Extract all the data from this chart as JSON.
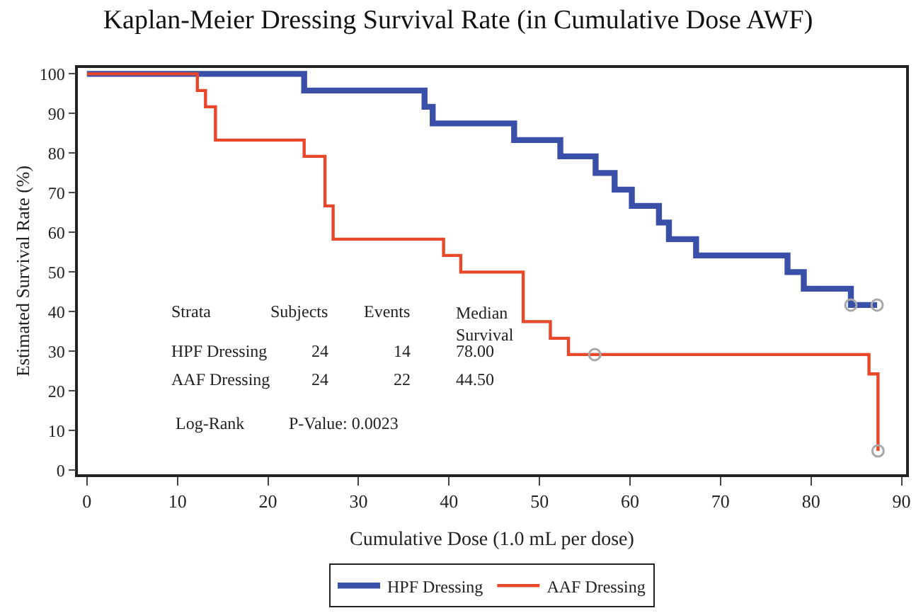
{
  "chart_data": {
    "type": "step",
    "title": "Kaplan-Meier Dressing Survival Rate (in Cumulative Dose AWF)",
    "xlabel": "Cumulative Dose (1.0 mL per dose)",
    "ylabel": "Estimated Survival Rate (%)",
    "xlim": [
      -1,
      90.5
    ],
    "ylim": [
      -1,
      101.5
    ],
    "xticks": [
      0,
      10,
      20,
      30,
      40,
      50,
      60,
      70,
      80,
      90
    ],
    "yticks": [
      0,
      10,
      20,
      30,
      40,
      50,
      60,
      70,
      80,
      90,
      100
    ],
    "legend": "bottom",
    "line_style": "solid",
    "marker": "none",
    "series": [
      {
        "name": "HPF Dressing",
        "color": "#3a4fa8",
        "x": [
          0,
          24,
          37.3,
          38.2,
          47.2,
          52.3,
          56.2,
          58.3,
          60.2,
          63.2,
          64.3,
          67.3,
          77.4,
          79.2,
          84.4,
          87.3
        ],
        "values": [
          100,
          95.8,
          91.7,
          87.5,
          83.3,
          79.2,
          75,
          70.8,
          66.7,
          62.5,
          58.3,
          54.2,
          50,
          45.8,
          41.7,
          41.7
        ]
      },
      {
        "name": "AAF Dressing",
        "color": "#e8472a",
        "x": [
          0,
          12.2,
          13.1,
          14.2,
          24,
          26.3,
          27.2,
          39.4,
          41.3,
          48.2,
          51.2,
          53.2,
          86.4,
          87.4
        ],
        "values": [
          100,
          95.8,
          91.7,
          83.3,
          79.2,
          66.7,
          58.3,
          54.2,
          50,
          37.5,
          33.3,
          29.2,
          24.3,
          4.9
        ]
      },
      {
        "type": "scatter",
        "marker": "circle",
        "color": "#a8a8a8",
        "x": [
          84.4,
          87.3,
          56.1,
          87.4
        ],
        "values": [
          41.7,
          41.7,
          29.2,
          4.9
        ]
      }
    ],
    "annotations": [
      "Strata",
      "Subjects",
      "Events",
      "Median Survival",
      "HPF Dressing",
      "24",
      "14",
      "78.00",
      "AAF Dressing",
      "24",
      "22",
      "44.50",
      "Log-Rank",
      "P-Value: 0.0023"
    ]
  }
}
